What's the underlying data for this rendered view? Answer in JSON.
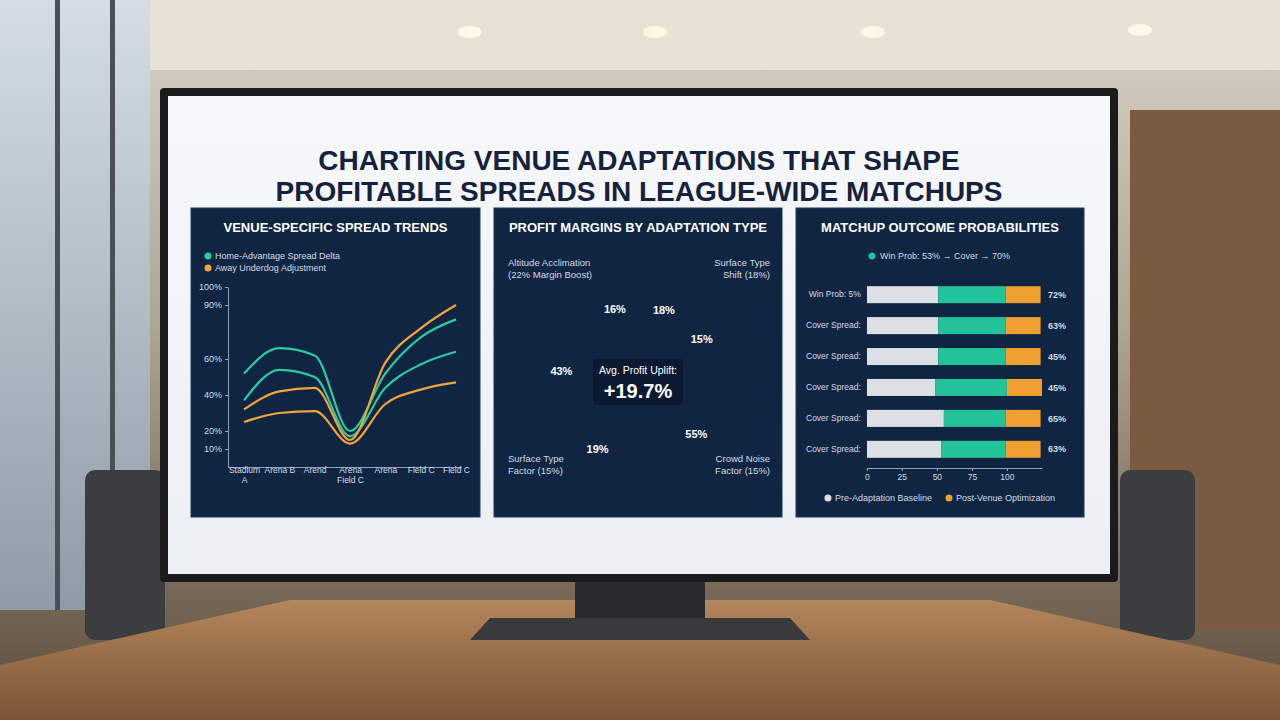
{
  "title": "CHARTING VENUE ADAPTATIONS THAT SHAPE PROFITABLE SPREADS IN LEAGUE-WIDE MATCHUPS",
  "chart_data": [
    {
      "type": "line",
      "title": "VENUE-SPECIFIC SPREAD TRENDS",
      "categories": [
        "Stadium A",
        "Arena B",
        "Arend",
        "Arena Field C",
        "Arena",
        "Field C",
        "Field C"
      ],
      "series": [
        {
          "name": "Home-Advantage Spread Delta",
          "color": "#2cc9a3",
          "values": [
            52,
            66,
            62,
            20,
            52,
            72,
            82
          ]
        },
        {
          "name": "Home-Advantage Spread Delta",
          "color": "#2cc9a3",
          "values": [
            37,
            54,
            50,
            17,
            44,
            57,
            64
          ]
        },
        {
          "name": "Away Underdog Adjustment",
          "color": "#f2a33a",
          "values": [
            32,
            42,
            44,
            15,
            58,
            77,
            90
          ]
        },
        {
          "name": "Away Underdog Adjustment",
          "color": "#f2a33a",
          "values": [
            25,
            30,
            31,
            13,
            35,
            43,
            47
          ]
        }
      ],
      "ylim": [
        0,
        100
      ],
      "yticks": [
        {
          "value": 10,
          "label": "10%"
        },
        {
          "value": 20,
          "label": "20%"
        },
        {
          "value": 40,
          "label": "40%"
        },
        {
          "value": 60,
          "label": "60%"
        },
        {
          "value": 90,
          "label": "90%"
        },
        {
          "value": 100,
          "label": "100%"
        }
      ],
      "grid": false,
      "legend": "top"
    },
    {
      "type": "pie",
      "title": "PROFIT MARGINS BY ADAPTATION TYPE",
      "values": [
        18,
        15,
        55,
        19,
        43,
        16
      ],
      "value_labels": [
        "18%",
        "15%",
        "55%",
        "19%",
        "43%",
        "16%"
      ],
      "colors": [
        "#3ecfae",
        "#2ebc9f",
        "#1a9c8c",
        "#1c64b4",
        "#1f74c8",
        "#2b8ee0"
      ],
      "data_labels": true,
      "annotations": [
        "Altitude Acclimation (22% Margin Boost)",
        "Surface Type Shift (18%)",
        "Surface Type Factor (15%)",
        "Crowd Noise Factor (15%)",
        "Avg. Profit Uplift:",
        "+19.7%"
      ]
    },
    {
      "type": "bar",
      "title": "MATCHUP OUTCOME PROBABILITIES",
      "subtitle": "Win Prob: 53% → Cover → 70%",
      "orientation": "horizontal",
      "stacked": true,
      "categories": [
        "Win Prob: 5%",
        "Cover Spread:",
        "Cover Spread:",
        "Cover Spread:",
        "Cover Spread:",
        "Cover Spread:"
      ],
      "series": [
        {
          "name": "Pre-Adaptation Baseline",
          "color": "#dcdfe3",
          "values": [
            51,
            51,
            51,
            49,
            55,
            53
          ]
        },
        {
          "color": "#22c29a",
          "values": [
            48,
            48,
            48,
            51,
            44,
            46
          ]
        },
        {
          "name": "Post-Venue Optimization",
          "color": "#f0a030",
          "values": [
            25,
            25,
            25,
            25,
            25,
            25
          ]
        }
      ],
      "xlim": [
        0,
        125
      ],
      "xticks": [
        0,
        25,
        50,
        75,
        100
      ],
      "annotations": [
        "72%",
        "63%",
        "45%",
        "45%",
        "65%",
        "63%"
      ],
      "legend": "bottom"
    }
  ]
}
